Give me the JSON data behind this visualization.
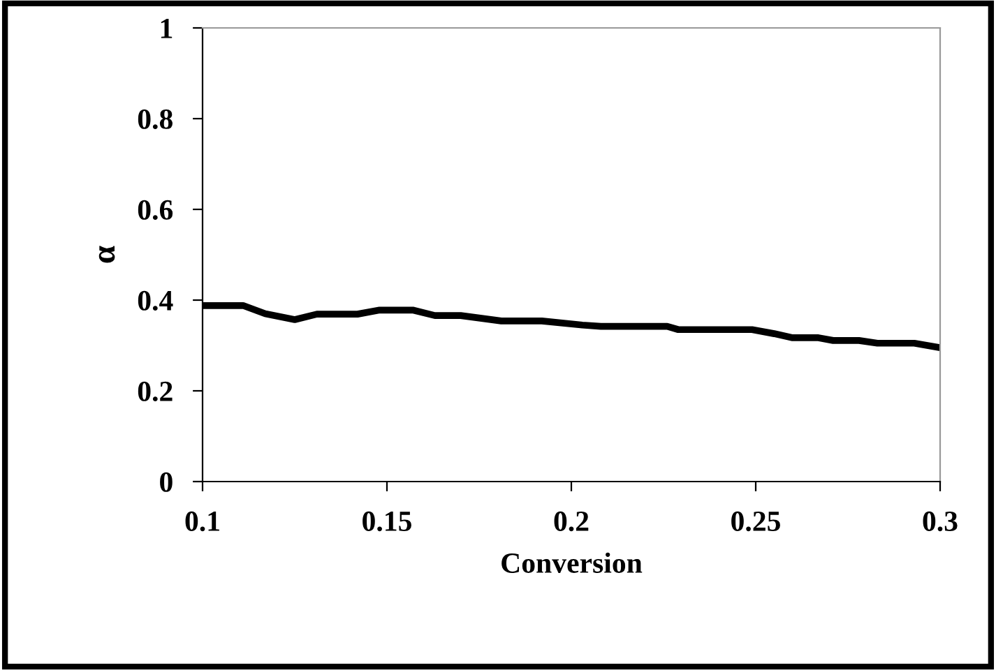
{
  "chart_data": {
    "type": "line",
    "xlabel": "Conversion",
    "ylabel": "α",
    "x": [
      0.1,
      0.111,
      0.117,
      0.125,
      0.131,
      0.142,
      0.148,
      0.157,
      0.163,
      0.17,
      0.181,
      0.192,
      0.203,
      0.208,
      0.226,
      0.229,
      0.249,
      0.255,
      0.26,
      0.267,
      0.271,
      0.278,
      0.283,
      0.293,
      0.3
    ],
    "series": [
      {
        "color": "#000000",
        "values": [
          0.388,
          0.388,
          0.37,
          0.357,
          0.369,
          0.369,
          0.378,
          0.378,
          0.366,
          0.366,
          0.354,
          0.354,
          0.345,
          0.342,
          0.342,
          0.335,
          0.335,
          0.326,
          0.317,
          0.317,
          0.311,
          0.311,
          0.305,
          0.305,
          0.295
        ]
      }
    ],
    "xlim": [
      0.1,
      0.3
    ],
    "xticks": [
      0.1,
      0.15,
      0.2,
      0.25,
      0.3
    ],
    "ylim": [
      0,
      1
    ],
    "yticks": [
      0,
      0.2,
      0.4,
      0.6,
      0.8,
      1
    ],
    "grid": false,
    "legend": false,
    "marker": "none",
    "line_style": "solid"
  }
}
